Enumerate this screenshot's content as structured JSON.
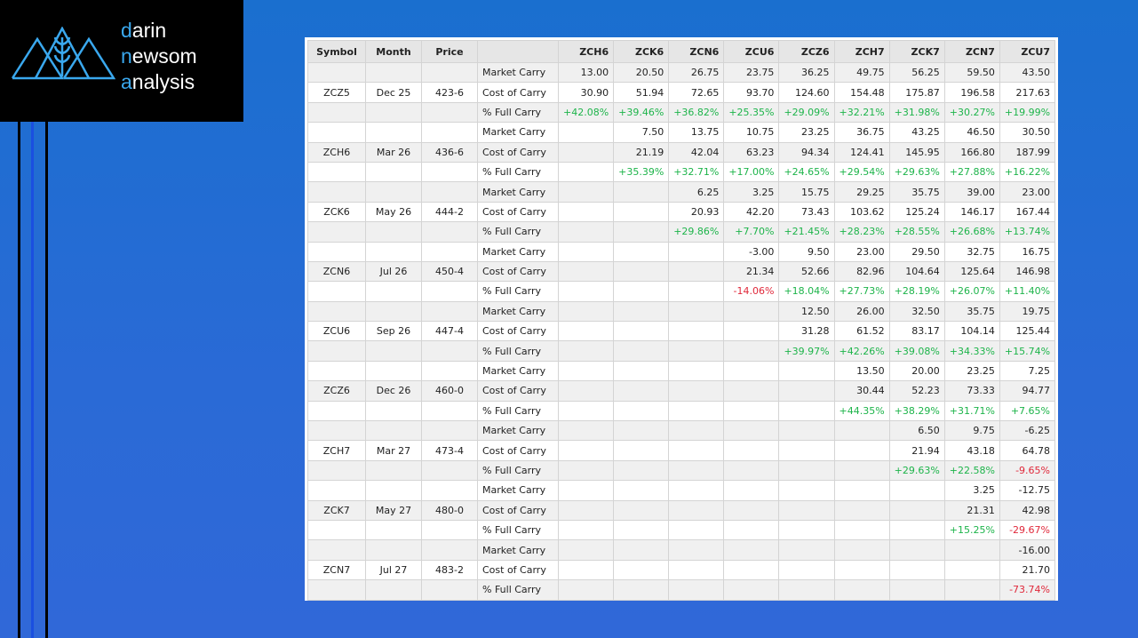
{
  "logo": {
    "lines": [
      {
        "accent": "d",
        "rest": "arin"
      },
      {
        "accent": "n",
        "rest": "ewsom"
      },
      {
        "accent": "a",
        "rest": "nalysis"
      }
    ]
  },
  "colors": {
    "positive": "#1db44a",
    "negative": "#e0283a"
  },
  "table": {
    "header": [
      "Symbol",
      "Month",
      "Price",
      null,
      "ZCH6",
      "ZCK6",
      "ZCN6",
      "ZCU6",
      "ZCZ6",
      "ZCH7",
      "ZCK7",
      "ZCN7",
      "ZCU7"
    ],
    "groups": [
      {
        "symbol": "ZCZ5",
        "month": "Dec 25",
        "price": "423-6",
        "rows": [
          {
            "label": "Market Carry",
            "values": [
              "13.00",
              "20.50",
              "26.75",
              "23.75",
              "36.25",
              "49.75",
              "56.25",
              "59.50",
              "43.50"
            ]
          },
          {
            "label": "Cost of Carry",
            "values": [
              "30.90",
              "51.94",
              "72.65",
              "93.70",
              "124.60",
              "154.48",
              "175.87",
              "196.58",
              "217.63"
            ]
          },
          {
            "label": "% Full Carry",
            "values": [
              "+42.08%",
              "+39.46%",
              "+36.82%",
              "+25.35%",
              "+29.09%",
              "+32.21%",
              "+31.98%",
              "+30.27%",
              "+19.99%"
            ]
          }
        ]
      },
      {
        "symbol": "ZCH6",
        "month": "Mar 26",
        "price": "436-6",
        "rows": [
          {
            "label": "Market Carry",
            "values": [
              null,
              "7.50",
              "13.75",
              "10.75",
              "23.25",
              "36.75",
              "43.25",
              "46.50",
              "30.50"
            ]
          },
          {
            "label": "Cost of Carry",
            "values": [
              null,
              "21.19",
              "42.04",
              "63.23",
              "94.34",
              "124.41",
              "145.95",
              "166.80",
              "187.99"
            ]
          },
          {
            "label": "% Full Carry",
            "values": [
              null,
              "+35.39%",
              "+32.71%",
              "+17.00%",
              "+24.65%",
              "+29.54%",
              "+29.63%",
              "+27.88%",
              "+16.22%"
            ]
          }
        ]
      },
      {
        "symbol": "ZCK6",
        "month": "May 26",
        "price": "444-2",
        "rows": [
          {
            "label": "Market Carry",
            "values": [
              null,
              null,
              "6.25",
              "3.25",
              "15.75",
              "29.25",
              "35.75",
              "39.00",
              "23.00"
            ]
          },
          {
            "label": "Cost of Carry",
            "values": [
              null,
              null,
              "20.93",
              "42.20",
              "73.43",
              "103.62",
              "125.24",
              "146.17",
              "167.44"
            ]
          },
          {
            "label": "% Full Carry",
            "values": [
              null,
              null,
              "+29.86%",
              "+7.70%",
              "+21.45%",
              "+28.23%",
              "+28.55%",
              "+26.68%",
              "+13.74%"
            ]
          }
        ]
      },
      {
        "symbol": "ZCN6",
        "month": "Jul 26",
        "price": "450-4",
        "rows": [
          {
            "label": "Market Carry",
            "values": [
              null,
              null,
              null,
              "-3.00",
              "9.50",
              "23.00",
              "29.50",
              "32.75",
              "16.75"
            ]
          },
          {
            "label": "Cost of Carry",
            "values": [
              null,
              null,
              null,
              "21.34",
              "52.66",
              "82.96",
              "104.64",
              "125.64",
              "146.98"
            ]
          },
          {
            "label": "% Full Carry",
            "values": [
              null,
              null,
              null,
              "-14.06%",
              "+18.04%",
              "+27.73%",
              "+28.19%",
              "+26.07%",
              "+11.40%"
            ]
          }
        ]
      },
      {
        "symbol": "ZCU6",
        "month": "Sep 26",
        "price": "447-4",
        "rows": [
          {
            "label": "Market Carry",
            "values": [
              null,
              null,
              null,
              null,
              "12.50",
              "26.00",
              "32.50",
              "35.75",
              "19.75"
            ]
          },
          {
            "label": "Cost of Carry",
            "values": [
              null,
              null,
              null,
              null,
              "31.28",
              "61.52",
              "83.17",
              "104.14",
              "125.44"
            ]
          },
          {
            "label": "% Full Carry",
            "values": [
              null,
              null,
              null,
              null,
              "+39.97%",
              "+42.26%",
              "+39.08%",
              "+34.33%",
              "+15.74%"
            ]
          }
        ]
      },
      {
        "symbol": "ZCZ6",
        "month": "Dec 26",
        "price": "460-0",
        "rows": [
          {
            "label": "Market Carry",
            "values": [
              null,
              null,
              null,
              null,
              null,
              "13.50",
              "20.00",
              "23.25",
              "7.25"
            ]
          },
          {
            "label": "Cost of Carry",
            "values": [
              null,
              null,
              null,
              null,
              null,
              "30.44",
              "52.23",
              "73.33",
              "94.77"
            ]
          },
          {
            "label": "% Full Carry",
            "values": [
              null,
              null,
              null,
              null,
              null,
              "+44.35%",
              "+38.29%",
              "+31.71%",
              "+7.65%"
            ]
          }
        ]
      },
      {
        "symbol": "ZCH7",
        "month": "Mar 27",
        "price": "473-4",
        "rows": [
          {
            "label": "Market Carry",
            "values": [
              null,
              null,
              null,
              null,
              null,
              null,
              "6.50",
              "9.75",
              "-6.25"
            ]
          },
          {
            "label": "Cost of Carry",
            "values": [
              null,
              null,
              null,
              null,
              null,
              null,
              "21.94",
              "43.18",
              "64.78"
            ]
          },
          {
            "label": "% Full Carry",
            "values": [
              null,
              null,
              null,
              null,
              null,
              null,
              "+29.63%",
              "+22.58%",
              "-9.65%"
            ]
          }
        ]
      },
      {
        "symbol": "ZCK7",
        "month": "May 27",
        "price": "480-0",
        "rows": [
          {
            "label": "Market Carry",
            "values": [
              null,
              null,
              null,
              null,
              null,
              null,
              null,
              "3.25",
              "-12.75"
            ]
          },
          {
            "label": "Cost of Carry",
            "values": [
              null,
              null,
              null,
              null,
              null,
              null,
              null,
              "21.31",
              "42.98"
            ]
          },
          {
            "label": "% Full Carry",
            "values": [
              null,
              null,
              null,
              null,
              null,
              null,
              null,
              "+15.25%",
              "-29.67%"
            ]
          }
        ]
      },
      {
        "symbol": "ZCN7",
        "month": "Jul 27",
        "price": "483-2",
        "rows": [
          {
            "label": "Market Carry",
            "values": [
              null,
              null,
              null,
              null,
              null,
              null,
              null,
              null,
              "-16.00"
            ]
          },
          {
            "label": "Cost of Carry",
            "values": [
              null,
              null,
              null,
              null,
              null,
              null,
              null,
              null,
              "21.70"
            ]
          },
          {
            "label": "% Full Carry",
            "values": [
              null,
              null,
              null,
              null,
              null,
              null,
              null,
              null,
              "-73.74%"
            ]
          }
        ]
      }
    ]
  }
}
